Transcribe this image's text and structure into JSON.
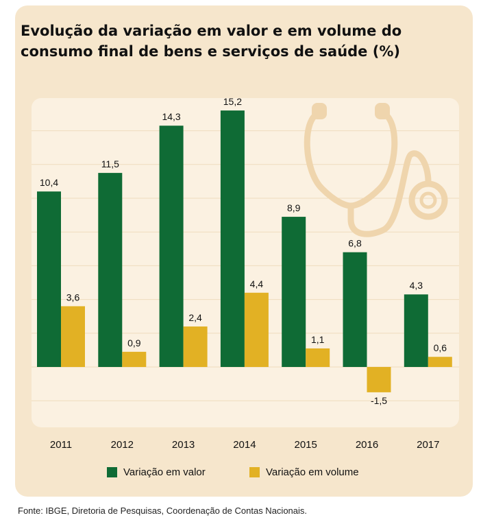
{
  "chart_data": {
    "type": "bar",
    "title": "Evolução da variação em valor e em volume do consumo final de bens e serviços de saúde (%)",
    "categories": [
      "2011",
      "2012",
      "2013",
      "2014",
      "2015",
      "2016",
      "2017"
    ],
    "series": [
      {
        "name": "Variação em valor",
        "color": "#0f6b35",
        "values": [
          10.4,
          11.5,
          14.3,
          15.2,
          8.9,
          6.8,
          4.3
        ],
        "labels": [
          "10,4",
          "11,5",
          "14,3",
          "15,2",
          "8,9",
          "6,8",
          "4,3"
        ]
      },
      {
        "name": "Variação em volume",
        "color": "#e2b124",
        "values": [
          3.6,
          0.9,
          2.4,
          4.4,
          1.1,
          -1.5,
          0.6
        ],
        "labels": [
          "3,6",
          "0,9",
          "2,4",
          "4,4",
          "1,1",
          "-1,5",
          "0,6"
        ]
      }
    ],
    "ylim": [
      -3,
      18
    ],
    "grid": true,
    "legend": "bottom",
    "decoration": "stethoscope-icon"
  },
  "source": "Fonte: IBGE, Diretoria de Pesquisas, Coordenação de Contas Nacionais."
}
